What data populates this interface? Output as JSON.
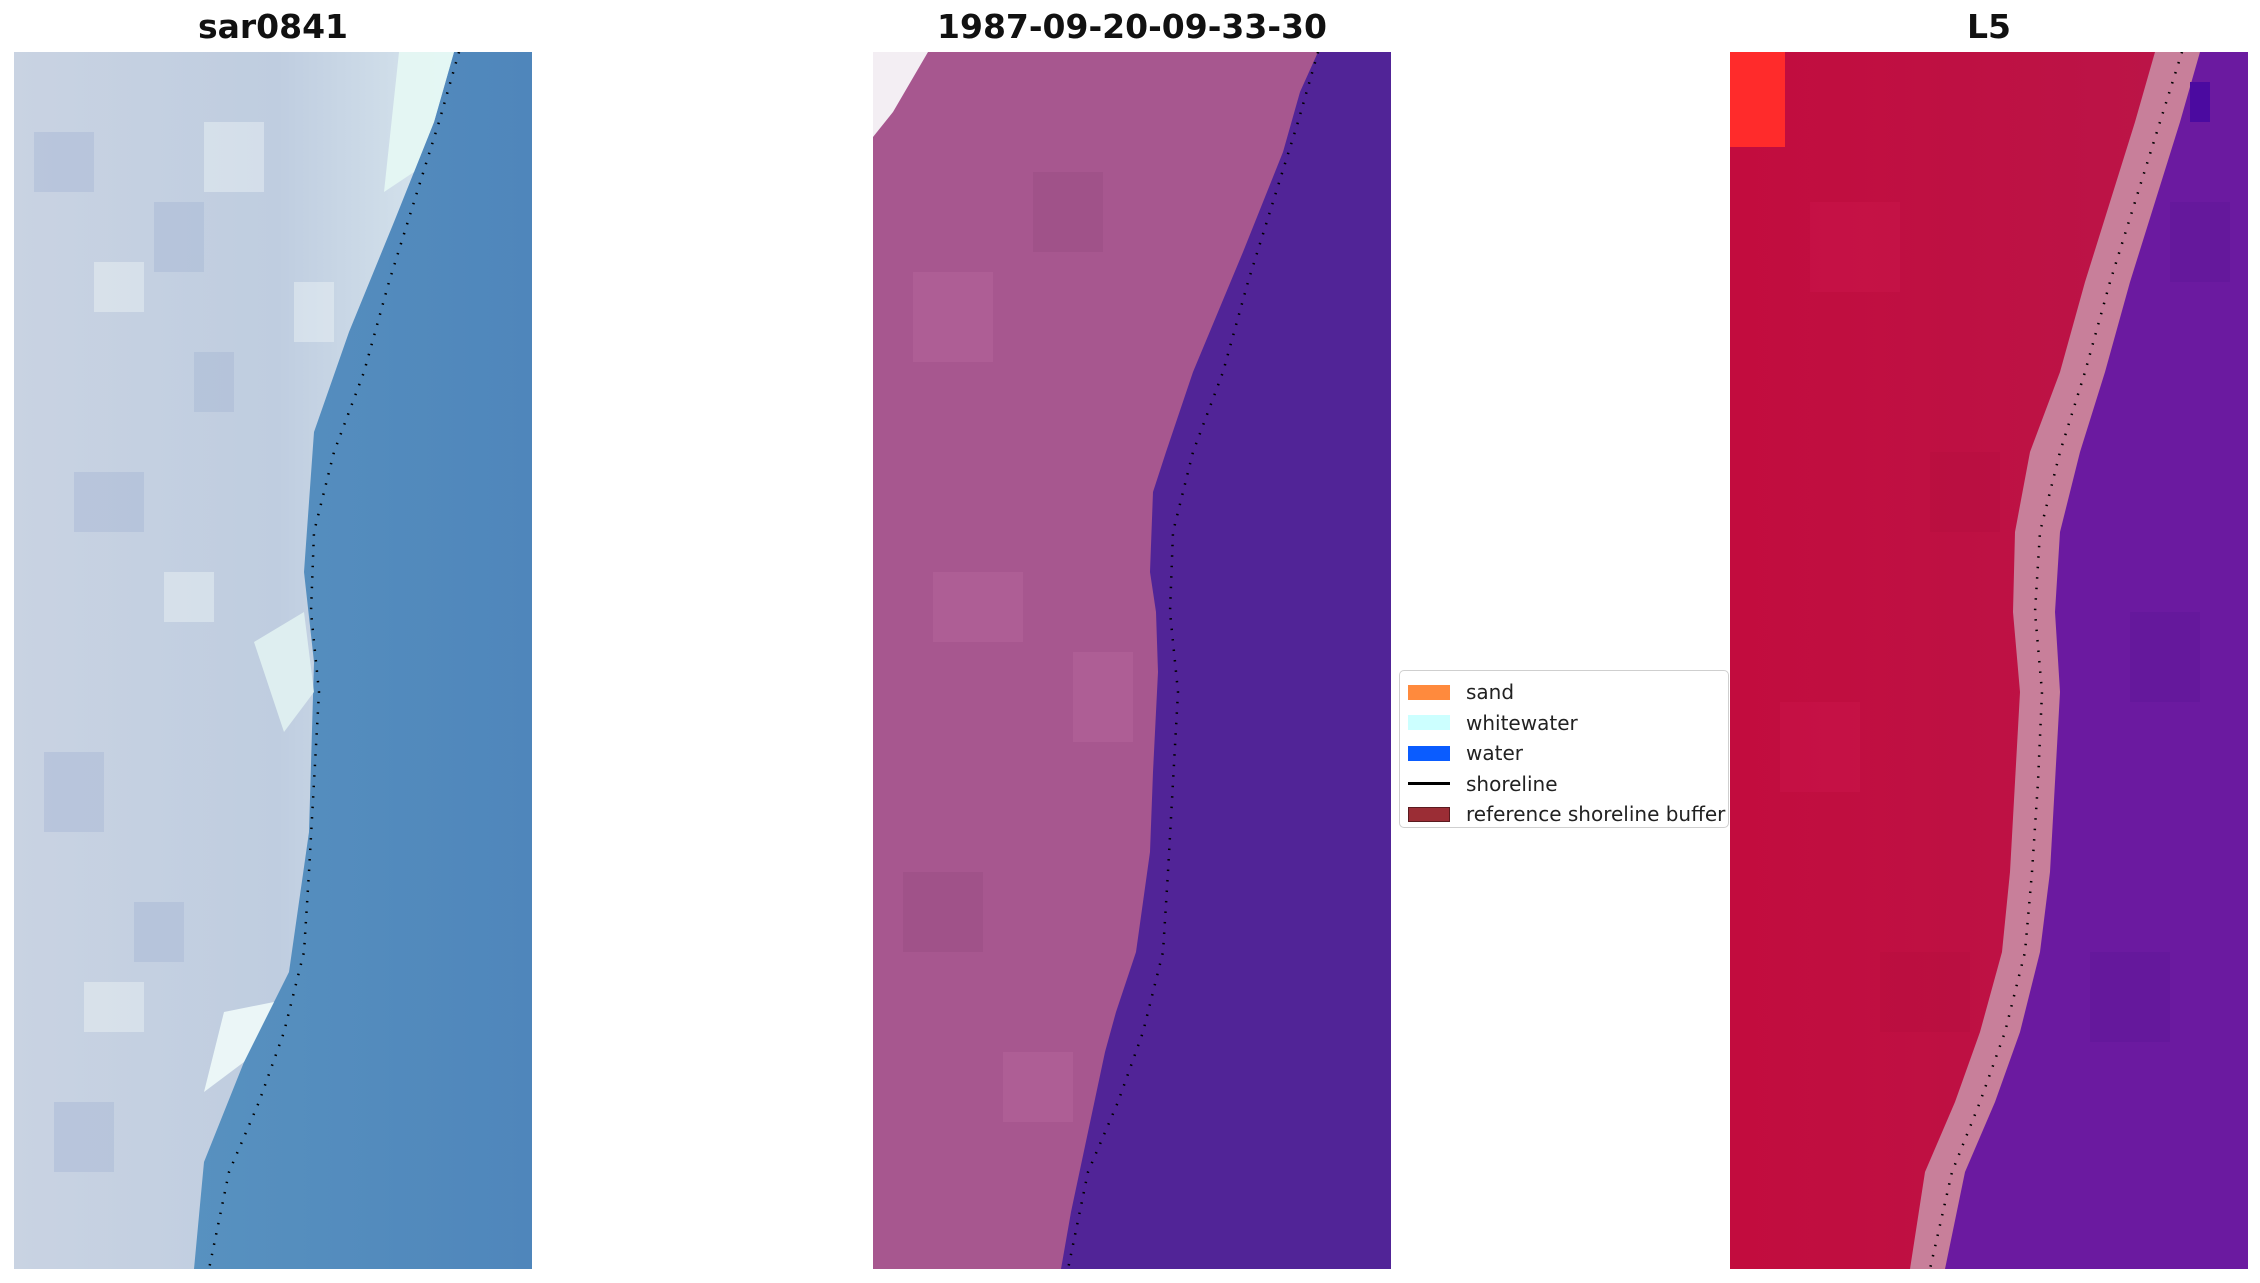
{
  "panels": [
    {
      "title": "sar0841"
    },
    {
      "title": "1987-09-20-09-33-30"
    },
    {
      "title": "L5"
    }
  ],
  "legend": {
    "items": [
      {
        "label": "sand",
        "color": "#ff8a3d",
        "kind": "patch"
      },
      {
        "label": "whitewater",
        "color": "#ccffff",
        "kind": "patch"
      },
      {
        "label": "water",
        "color": "#0a5cff",
        "kind": "patch"
      },
      {
        "label": "shoreline",
        "color": "#000000",
        "kind": "line"
      },
      {
        "label": "reference shoreline buffer",
        "color": "#9b2d35",
        "kind": "patch"
      }
    ]
  },
  "colors": {
    "rgb_land": "#c3cfe0",
    "rgb_water": "#5289bd",
    "classified_land": "#a7578f",
    "classified_water": "#512497",
    "nir_land": "#c01040",
    "nir_water": "#6a1aa0",
    "buffer_band": "#c87f9a"
  }
}
